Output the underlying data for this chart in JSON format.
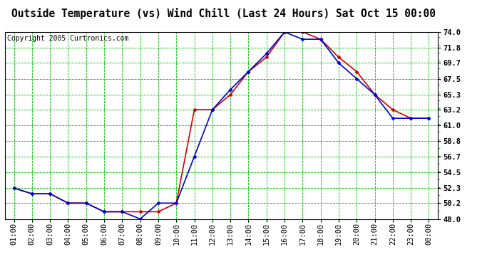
{
  "title": "Outside Temperature (vs) Wind Chill (Last 24 Hours) Sat Oct 15 00:00",
  "copyright": "Copyright 2005 Curtronics.com",
  "x_labels": [
    "01:00",
    "02:00",
    "03:00",
    "04:00",
    "05:00",
    "06:00",
    "07:00",
    "08:00",
    "09:00",
    "10:00",
    "11:00",
    "12:00",
    "13:00",
    "14:00",
    "15:00",
    "16:00",
    "17:00",
    "18:00",
    "19:00",
    "20:00",
    "21:00",
    "22:00",
    "23:00",
    "00:00"
  ],
  "outside_temp": [
    52.3,
    51.5,
    51.5,
    50.2,
    50.2,
    49.0,
    49.0,
    48.0,
    50.2,
    50.2,
    56.7,
    63.2,
    66.0,
    68.5,
    71.0,
    74.0,
    73.0,
    73.0,
    69.7,
    67.5,
    65.3,
    62.0,
    62.0,
    62.0
  ],
  "wind_chill": [
    52.3,
    51.5,
    51.5,
    50.2,
    50.2,
    49.0,
    49.0,
    49.0,
    49.0,
    50.2,
    63.2,
    63.2,
    65.3,
    68.5,
    70.5,
    74.0,
    74.0,
    73.0,
    70.5,
    68.5,
    65.3,
    63.2,
    62.0,
    62.0
  ],
  "ylim": [
    48.0,
    74.0
  ],
  "yticks": [
    48.0,
    50.2,
    52.3,
    54.5,
    56.7,
    58.8,
    61.0,
    63.2,
    65.3,
    67.5,
    69.7,
    71.8,
    74.0
  ],
  "outside_color": "#0000cc",
  "windchill_color": "#cc0000",
  "bg_color": "#ffffff",
  "plot_bg_color": "#ffffff",
  "grid_color": "#00bb00",
  "title_fontsize": 10.5,
  "tick_fontsize": 7.5,
  "copyright_fontsize": 7
}
